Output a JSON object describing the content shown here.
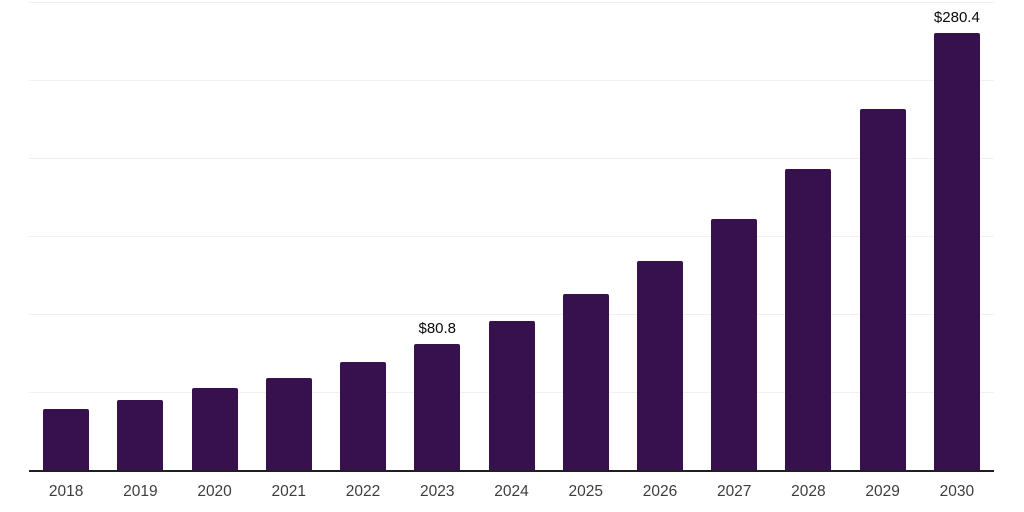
{
  "chart_data": {
    "type": "bar",
    "title": "",
    "xlabel": "",
    "ylabel": "",
    "categories": [
      "2018",
      "2019",
      "2020",
      "2021",
      "2022",
      "2023",
      "2024",
      "2025",
      "2026",
      "2027",
      "2028",
      "2029",
      "2030"
    ],
    "values": [
      39.3,
      44.9,
      52.3,
      59.2,
      69.4,
      80.8,
      95.3,
      113.0,
      134.2,
      160.9,
      192.9,
      231.3,
      280.4
    ],
    "data_labels": [
      "",
      "",
      "",
      "",
      "",
      "$80.8",
      "",
      "",
      "",
      "",
      "",
      "",
      "$280.4"
    ],
    "ylim": [
      0,
      300
    ],
    "gridline_interval": 50,
    "grid": true,
    "legend": "none",
    "colors": {
      "bar": "#36114e",
      "axis_line": "#1f1f1f",
      "gridline": "#f0f0f2",
      "tick_label": "#3d3d3d",
      "data_label": "#0a0a0a",
      "background": "#ffffff"
    }
  }
}
